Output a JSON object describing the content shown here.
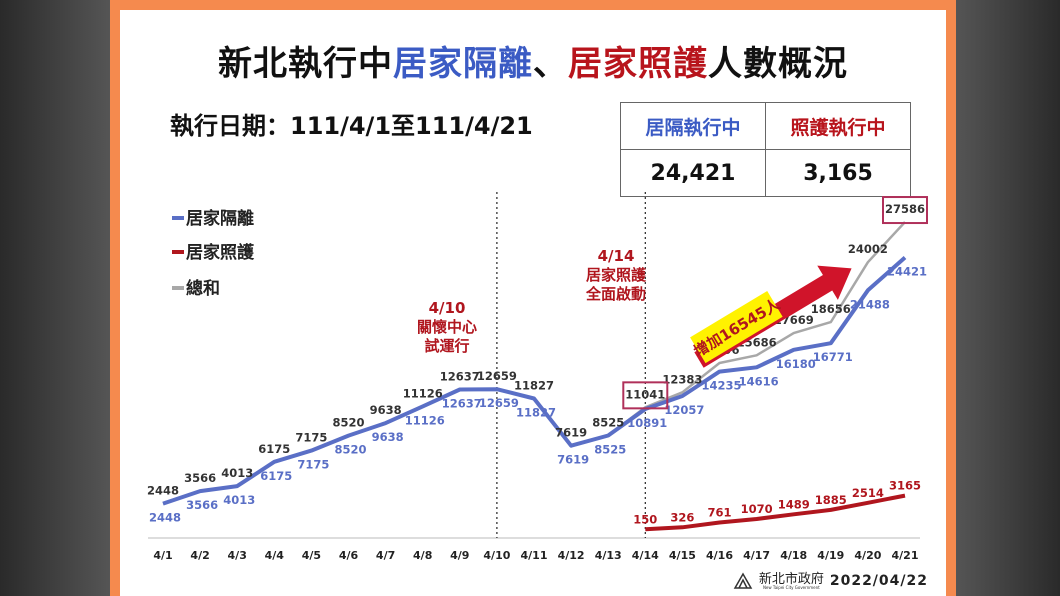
{
  "title": {
    "part1": "新北執行中",
    "part2": "居家隔離",
    "part3": "、",
    "part4": "居家照護",
    "part5": "人數概況"
  },
  "date_range": "執行日期：111/4/1至111/4/21",
  "stats": {
    "quarantine_label": "居隔執行中",
    "care_label": "照護執行中",
    "quarantine_value": "24,421",
    "care_value": "3,165"
  },
  "legend": {
    "quarantine": "居家隔離",
    "care": "居家照護",
    "total": "總和"
  },
  "annotations": {
    "apr10_date": "4/10",
    "apr10_line1": "關懷中心",
    "apr10_line2": "試運行",
    "apr14_date": "4/14",
    "apr14_line1": "居家照護",
    "apr14_line2": "全面啟動",
    "increase": "增加16545人"
  },
  "footer": {
    "logo_main": "新北市政府",
    "logo_sub": "New Taipei City Government",
    "date": "2022/04/22"
  },
  "colors": {
    "quarantine": "#5a6fc6",
    "care": "#b0161e",
    "total": "#a8a8a8",
    "highlight": "#b0305a",
    "arrow": "#d0142a",
    "callout_bg": "#fff200"
  },
  "chart_data": {
    "type": "line",
    "categories": [
      "4/1",
      "4/2",
      "4/3",
      "4/4",
      "4/5",
      "4/6",
      "4/7",
      "4/8",
      "4/9",
      "4/10",
      "4/11",
      "4/12",
      "4/13",
      "4/14",
      "4/15",
      "4/16",
      "4/17",
      "4/18",
      "4/19",
      "4/20",
      "4/21"
    ],
    "series": [
      {
        "name": "居家隔離",
        "values": [
          2448,
          3566,
          4013,
          6175,
          7175,
          8520,
          9638,
          11126,
          12637,
          12659,
          11827,
          7619,
          8525,
          10891,
          12057,
          14235,
          14616,
          16180,
          16771,
          21488,
          24421
        ]
      },
      {
        "name": "居家照護",
        "values": [
          null,
          null,
          null,
          null,
          null,
          null,
          null,
          null,
          null,
          null,
          null,
          null,
          null,
          150,
          326,
          761,
          1070,
          1489,
          1885,
          2514,
          3165
        ]
      },
      {
        "name": "總和",
        "values": [
          2448,
          3566,
          4013,
          6175,
          7175,
          8520,
          9638,
          11126,
          12637,
          12659,
          11827,
          7619,
          8525,
          11041,
          12383,
          14996,
          15686,
          17669,
          18656,
          24002,
          27586
        ]
      }
    ],
    "highlighted_totals": [
      "11041",
      "27586"
    ],
    "vlines_at": [
      "4/10",
      "4/14"
    ],
    "ylim": [
      0,
      30000
    ]
  }
}
